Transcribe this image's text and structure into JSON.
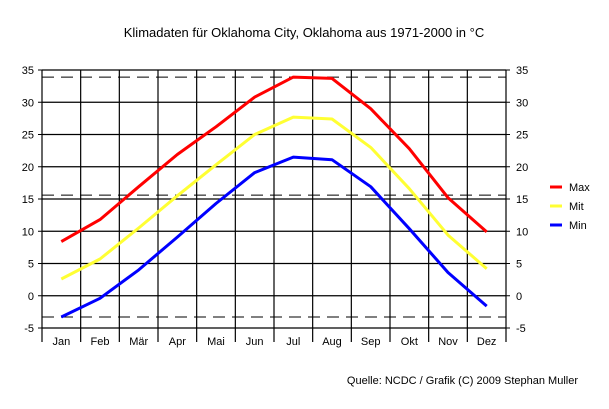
{
  "chart_data": {
    "type": "line",
    "title": "Klimadaten für Oklahoma City, Oklahoma aus 1971-2000 in °C",
    "source": "Quelle: NCDC / Grafik (C) 2009 Stephan Muller",
    "xlabel": "",
    "ylabel": "",
    "categories": [
      "Jan",
      "Feb",
      "Mär",
      "Apr",
      "Mai",
      "Jun",
      "Jul",
      "Aug",
      "Sep",
      "Okt",
      "Nov",
      "Dez"
    ],
    "ylim": [
      -7,
      35
    ],
    "yticks": [
      35,
      30,
      25,
      20,
      15,
      10,
      5,
      0,
      -5
    ],
    "grid": true,
    "legend_position": "right",
    "series": [
      {
        "name": "Max",
        "color": "#ff0000",
        "values": [
          8.4,
          11.8,
          16.9,
          21.9,
          26.2,
          30.8,
          33.9,
          33.7,
          29.0,
          22.8,
          15.2,
          9.9
        ]
      },
      {
        "name": "Mit",
        "color": "#ffff33",
        "values": [
          2.6,
          5.7,
          10.5,
          15.5,
          20.3,
          25.0,
          27.7,
          27.4,
          23.0,
          16.6,
          9.4,
          4.2
        ]
      },
      {
        "name": "Min",
        "color": "#0000ff",
        "values": [
          -3.3,
          -0.4,
          4.0,
          9.1,
          14.3,
          19.1,
          21.5,
          21.1,
          16.9,
          10.4,
          3.6,
          -1.6
        ]
      }
    ],
    "reference_lines": [
      {
        "label": "max",
        "value": 33.9
      },
      {
        "label": "annual mean",
        "value": 15.6
      },
      {
        "label": "min",
        "value": -3.3
      }
    ]
  }
}
